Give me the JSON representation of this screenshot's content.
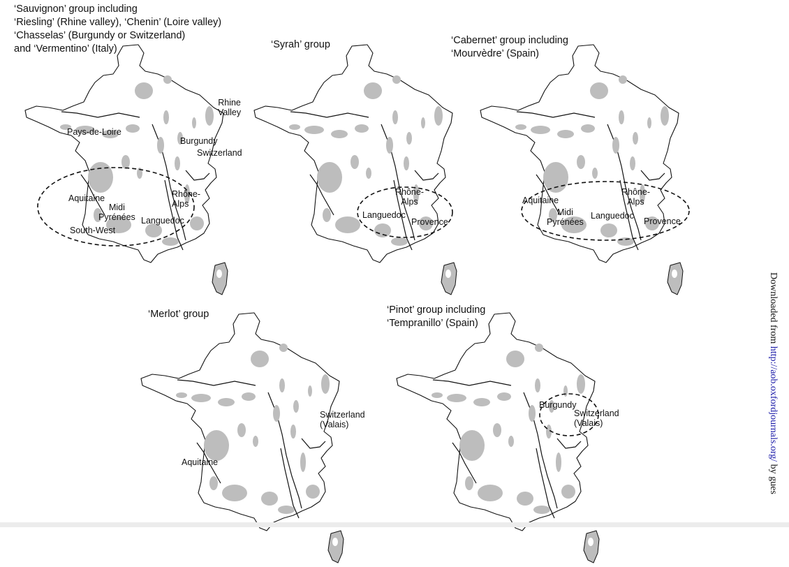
{
  "panels": [
    {
      "id": "sauvignon",
      "title": "‘Sauvignon’ group including\n‘Riesling’ (Rhine valley), ‘Chenin’ (Loire valley)\n‘Chasselas’ (Burgundy or Switzerland)\nand ‘Vermentino’ (Italy)",
      "labels": {
        "rhine": "Rhine\nValley",
        "pays_de_loire": "Pays-de-Loire",
        "burgundy": "Burgundy",
        "switzerland": "Switzerland",
        "aquitaine": "Aquitaine",
        "midi_pyrenees": "Midi\nPyrénées",
        "south_west": "South-West",
        "rhone_alps": "Rhône-\nAlps",
        "languedoc": "Languedoc"
      }
    },
    {
      "id": "syrah",
      "title": "‘Syrah’ group",
      "labels": {
        "rhone_alps": "Rhône-\nAlps",
        "languedoc": "Languedoc",
        "provence": "Provence"
      }
    },
    {
      "id": "cabernet",
      "title": "‘Cabernet’ group including\n‘Mourvèdre’ (Spain)",
      "labels": {
        "aquitaine": "Aquitaine",
        "midi_pyrenees": "Midi\nPyrénées",
        "languedoc": "Languedoc",
        "rhone_alps": "Rhône-\nAlps",
        "provence": "Provence"
      }
    },
    {
      "id": "merlot",
      "title": "‘Merlot’ group",
      "labels": {
        "switzerland": "Switzerland\n(Valais)",
        "aquitaine": "Aquitaine"
      }
    },
    {
      "id": "pinot",
      "title": "‘Pinot’ group including\n‘Tempranillo’ (Spain)",
      "labels": {
        "burgundy": "Burgundy",
        "switzerland": "Switzerland\n(Valais)"
      }
    }
  ],
  "side_credit": {
    "prefix": "Downloaded from ",
    "link": "http://aob.oxfordjournals.org/",
    "suffix": " by gues"
  },
  "colors": {
    "region_fill": "#bdbdbd",
    "outline": "#111111",
    "link": "#1a1aa8"
  }
}
